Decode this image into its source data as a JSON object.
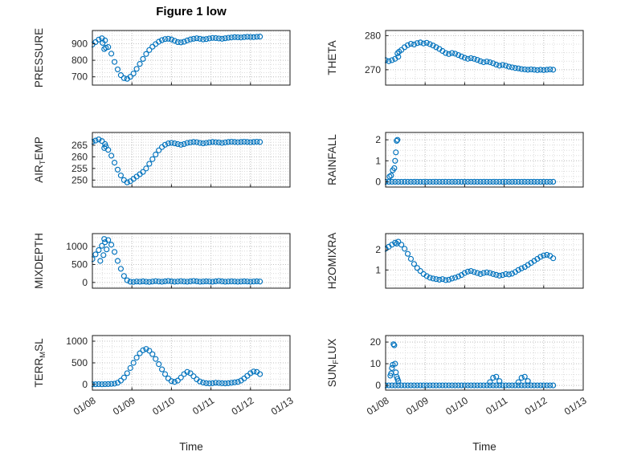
{
  "title": "Figure 1 low",
  "marker_color": "#0072BD",
  "axis_color": "#262626",
  "box_color": "#1a1a1a",
  "grid_major_color": "#c2c2c2",
  "grid_minor_color": "#dcdcdc",
  "xaxis": {
    "label": "Time",
    "lim": [
      0,
      5
    ],
    "ticks": [
      0,
      1,
      2,
      3,
      4,
      5
    ],
    "tick_labels": [
      "01/08",
      "01/09",
      "01/10",
      "01/11",
      "01/12",
      "01/13"
    ],
    "minor_step": 0.25
  },
  "x_base": [
    0,
    0.08,
    0.16,
    0.24,
    0.32,
    0.4,
    0.48,
    0.56,
    0.64,
    0.72,
    0.8,
    0.88,
    0.96,
    1.04,
    1.12,
    1.2,
    1.28,
    1.36,
    1.44,
    1.52,
    1.6,
    1.68,
    1.76,
    1.84,
    1.92,
    2,
    2.08,
    2.16,
    2.24,
    2.32,
    2.4,
    2.48,
    2.56,
    2.64,
    2.72,
    2.8,
    2.88,
    2.96,
    3.04,
    3.12,
    3.2,
    3.28,
    3.36,
    3.44,
    3.52,
    3.6,
    3.68,
    3.76,
    3.84,
    3.92,
    4,
    4.08,
    4.16,
    4.24
  ],
  "chart_data": [
    {
      "type": "scatter",
      "name": "pressure",
      "ylabel": [
        {
          "t": "PRESSURE"
        }
      ],
      "ylim": [
        650,
        980
      ],
      "yticks": [
        700,
        800,
        900
      ],
      "yminor": 25,
      "y_base": [
        895,
        910,
        925,
        933,
        920,
        880,
        840,
        790,
        745,
        710,
        692,
        688,
        700,
        720,
        748,
        778,
        808,
        838,
        862,
        882,
        898,
        912,
        922,
        928,
        930,
        926,
        918,
        910,
        908,
        912,
        920,
        926,
        930,
        933,
        930,
        926,
        928,
        932,
        935,
        934,
        932,
        930,
        933,
        936,
        938,
        940,
        939,
        938,
        940,
        942,
        941,
        940,
        942,
        943
      ],
      "extra": [
        [
          0.3,
          868
        ],
        [
          0.34,
          876
        ],
        [
          0.26,
          905
        ]
      ]
    },
    {
      "type": "scatter",
      "name": "theta",
      "ylabel": [
        {
          "t": "THETA"
        }
      ],
      "ylim": [
        265.5,
        281.5
      ],
      "yticks": [
        270,
        280
      ],
      "yminor": 2.5,
      "y_base": [
        272.8,
        272.5,
        272.8,
        273.2,
        273.8,
        275.8,
        276.6,
        277.2,
        277.6,
        277.4,
        277.8,
        278,
        277.7,
        277.9,
        277.5,
        277.1,
        276.6,
        276.1,
        275.5,
        274.9,
        274.6,
        274.9,
        274.7,
        274.3,
        273.9,
        273.5,
        273.2,
        273.4,
        273.2,
        272.9,
        272.5,
        272.2,
        272.4,
        272.2,
        271.9,
        271.5,
        271.2,
        271.4,
        271.2,
        270.9,
        270.7,
        270.5,
        270.4,
        270.2,
        270.1,
        270,
        270.1,
        270,
        269.9,
        270,
        269.9,
        270,
        270.1,
        270
      ],
      "extra": [
        [
          0.3,
          274.8
        ],
        [
          0.34,
          275.3
        ]
      ]
    },
    {
      "type": "scatter",
      "name": "air-temp",
      "ylabel": [
        {
          "t": "AIR"
        },
        {
          "t": "T",
          "sub": true
        },
        {
          "t": "EMP"
        }
      ],
      "ylim": [
        247,
        270.5
      ],
      "yticks": [
        250,
        255,
        260,
        265
      ],
      "yminor": 1.25,
      "y_base": [
        266.5,
        267,
        267.5,
        266.8,
        265.5,
        263,
        260.5,
        257.5,
        254.5,
        252,
        250,
        249,
        249.5,
        250.5,
        251.5,
        252.5,
        253.5,
        255,
        257,
        259,
        261,
        262.8,
        264.2,
        265.2,
        265.8,
        266,
        265.8,
        265.5,
        265.2,
        265.5,
        266,
        266.2,
        266.4,
        266.3,
        266,
        265.8,
        266,
        266.2,
        266.4,
        266.3,
        266.2,
        266,
        266.2,
        266.4,
        266.5,
        266.4,
        266.3,
        266.4,
        266.5,
        266.4,
        266.3,
        266.4,
        266.5,
        266.4
      ],
      "extra": [
        [
          0.3,
          263.8
        ],
        [
          0.34,
          264.5
        ]
      ]
    },
    {
      "type": "scatter",
      "name": "rainfall",
      "ylabel": [
        {
          "t": "RAINFALL"
        }
      ],
      "ylim": [
        -0.25,
        2.35
      ],
      "yticks": [
        0,
        1,
        2
      ],
      "yminor": 0.25,
      "y_base": [
        0,
        0,
        0,
        0,
        0,
        0,
        0,
        0,
        0,
        0,
        0,
        0,
        0,
        0,
        0,
        0,
        0,
        0,
        0,
        0,
        0,
        0,
        0,
        0,
        0,
        0,
        0,
        0,
        0,
        0,
        0,
        0,
        0,
        0,
        0,
        0,
        0,
        0,
        0,
        0,
        0,
        0,
        0,
        0,
        0,
        0,
        0,
        0,
        0,
        0,
        0,
        0,
        0,
        0
      ],
      "extra": [
        [
          0.1,
          0.25
        ],
        [
          0.14,
          0.3
        ],
        [
          0.18,
          0.55
        ],
        [
          0.22,
          0.65
        ],
        [
          0.24,
          1.0
        ],
        [
          0.26,
          1.4
        ],
        [
          0.28,
          1.95
        ],
        [
          0.3,
          2.0
        ]
      ]
    },
    {
      "type": "scatter",
      "name": "mixdepth",
      "ylabel": [
        {
          "t": "MIXDEPTH"
        }
      ],
      "ylim": [
        -160,
        1360
      ],
      "yticks": [
        0,
        500,
        1000
      ],
      "yminor": 125,
      "y_base": [
        650,
        780,
        900,
        1020,
        1120,
        1180,
        1050,
        850,
        600,
        380,
        180,
        60,
        20,
        15,
        25,
        20,
        30,
        20,
        15,
        25,
        35,
        25,
        20,
        30,
        40,
        30,
        20,
        25,
        35,
        25,
        20,
        30,
        40,
        30,
        20,
        25,
        30,
        25,
        20,
        30,
        40,
        30,
        20,
        25,
        30,
        25,
        20,
        25,
        30,
        25,
        20,
        25,
        30,
        25
      ],
      "extra": [
        [
          0.2,
          600
        ],
        [
          0.28,
          760
        ],
        [
          0.36,
          920
        ],
        [
          0.3,
          1210
        ]
      ]
    },
    {
      "type": "scatter",
      "name": "h2omixra",
      "ylabel": [
        {
          "t": "H2OMIXRA"
        }
      ],
      "ylim": [
        0.1,
        2.8
      ],
      "yticks": [
        1,
        2
      ],
      "yminor": 0.25,
      "y_base": [
        2.05,
        2.15,
        2.25,
        2.35,
        2.4,
        2.25,
        2.05,
        1.8,
        1.55,
        1.3,
        1.1,
        0.95,
        0.8,
        0.7,
        0.62,
        0.58,
        0.55,
        0.52,
        0.55,
        0.5,
        0.52,
        0.58,
        0.62,
        0.68,
        0.75,
        0.85,
        0.92,
        0.95,
        0.9,
        0.85,
        0.8,
        0.85,
        0.88,
        0.85,
        0.8,
        0.76,
        0.72,
        0.75,
        0.8,
        0.78,
        0.82,
        0.9,
        1.0,
        1.08,
        1.15,
        1.25,
        1.35,
        1.45,
        1.55,
        1.65,
        1.72,
        1.75,
        1.7,
        1.58
      ],
      "extra": [
        [
          0.28,
          2.3
        ]
      ]
    },
    {
      "type": "scatter",
      "name": "terr-msl",
      "ylabel": [
        {
          "t": "TERR"
        },
        {
          "t": "M",
          "sub": true
        },
        {
          "t": "SL"
        }
      ],
      "ylim": [
        -130,
        1130
      ],
      "yticks": [
        0,
        500,
        1000
      ],
      "yminor": 125,
      "y_base": [
        5,
        5,
        8,
        5,
        8,
        10,
        15,
        20,
        40,
        90,
        160,
        260,
        380,
        500,
        620,
        720,
        790,
        820,
        780,
        700,
        590,
        470,
        350,
        240,
        140,
        80,
        60,
        90,
        160,
        240,
        290,
        260,
        190,
        120,
        70,
        45,
        30,
        25,
        30,
        40,
        35,
        30,
        25,
        30,
        40,
        50,
        60,
        90,
        140,
        200,
        260,
        300,
        290,
        240
      ],
      "extra": []
    },
    {
      "type": "scatter",
      "name": "sun-flux",
      "ylabel": [
        {
          "t": "SUN"
        },
        {
          "t": "F",
          "sub": true
        },
        {
          "t": "LUX"
        }
      ],
      "ylim": [
        -2.2,
        23
      ],
      "yticks": [
        0,
        10,
        20
      ],
      "yminor": 2.5,
      "y_base": [
        0,
        0,
        0,
        0,
        0,
        0,
        0,
        0,
        0,
        0,
        0,
        0,
        0,
        0,
        0,
        0,
        0,
        0,
        0,
        0,
        0,
        0,
        0,
        0,
        0,
        0,
        0,
        0,
        0,
        0,
        0,
        0,
        0,
        0,
        0,
        0,
        0,
        0,
        0,
        0,
        0,
        0,
        0,
        0,
        0,
        0,
        0,
        0,
        0,
        0,
        0,
        0,
        0,
        0
      ],
      "extra": [
        [
          0.12,
          4.5
        ],
        [
          0.14,
          5.5
        ],
        [
          0.16,
          8
        ],
        [
          0.18,
          9.5
        ],
        [
          0.2,
          19
        ],
        [
          0.22,
          18.5
        ],
        [
          0.24,
          10
        ],
        [
          0.26,
          6
        ],
        [
          0.28,
          4
        ],
        [
          0.3,
          3
        ],
        [
          0.32,
          2
        ],
        [
          2.64,
          1.5
        ],
        [
          2.72,
          3.5
        ],
        [
          2.8,
          4
        ],
        [
          2.88,
          2
        ],
        [
          3.36,
          1.5
        ],
        [
          3.44,
          3.5
        ],
        [
          3.52,
          4
        ],
        [
          3.6,
          2
        ]
      ]
    }
  ]
}
